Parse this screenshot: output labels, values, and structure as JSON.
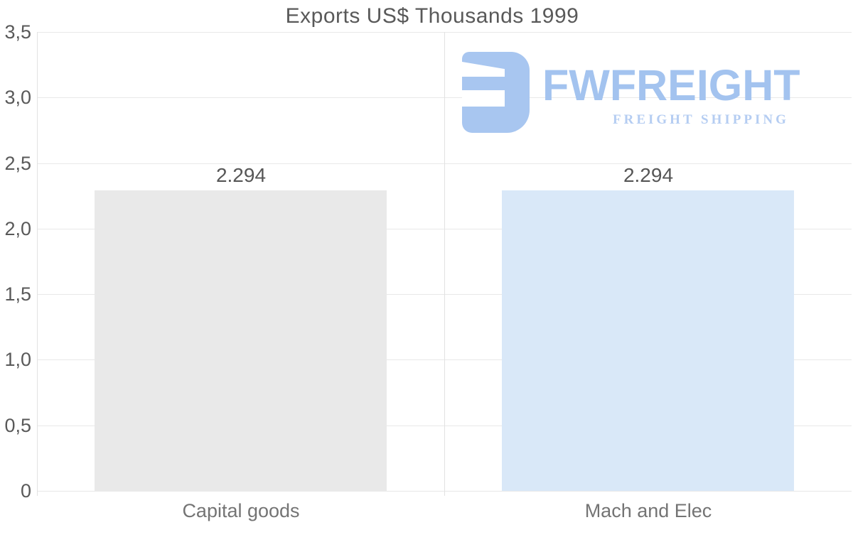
{
  "chart_data": {
    "type": "bar",
    "title": "Exports US$ Thousands 1999",
    "categories": [
      "Capital goods",
      "Mach and Elec"
    ],
    "values": [
      2.294,
      2.294
    ],
    "data_labels": [
      "2.294",
      "2.294"
    ],
    "bar_colors": [
      "#e9e9e9",
      "#d9e8f8"
    ],
    "ylim": [
      0,
      3.5
    ],
    "ytick_labels": [
      "3,5",
      "3,0",
      "2,5",
      "2,0",
      "1,5",
      "1,0",
      "0,5",
      "0"
    ],
    "xlabel": "",
    "ylabel": "",
    "grid": true,
    "legend": false,
    "decimal_separator": "comma",
    "gridline_color": "#e8e8e8",
    "axis_line_color": "#e2e2e2"
  },
  "watermark": {
    "wordmark": "FWFREIGHT",
    "tagline": "FREIGHT SHIPPING",
    "mark_icon": "freight-logo-mark",
    "colors": {
      "mark": "#a8c6f0",
      "wordmark": "#a3c3ef",
      "tagline": "#b5cdf2"
    }
  },
  "colors": {
    "background": "#ffffff",
    "title_text": "#595959",
    "axis_text": "#595959",
    "value_label_text": "#565656",
    "category_text": "#747474"
  }
}
